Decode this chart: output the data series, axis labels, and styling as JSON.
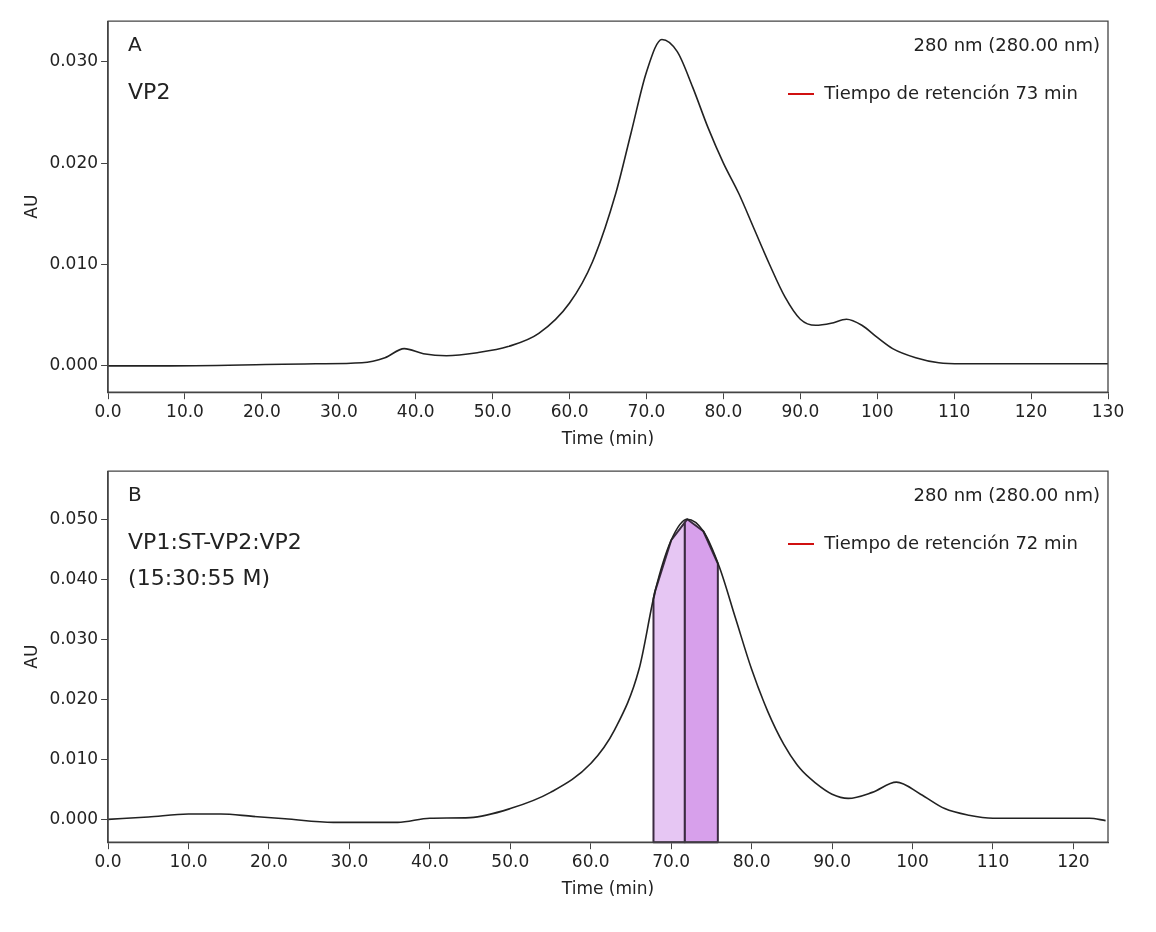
{
  "chart_data": [
    {
      "type": "line",
      "xlabel": "Time (min)",
      "ylabel": "AU",
      "annotations": [
        "A",
        "VP2",
        "280 nm (280.00 nm)",
        "Tiempo de retención 73 min"
      ],
      "series": [
        {
          "color": "#222222",
          "x": [
            0,
            8,
            27,
            33,
            36,
            38.5,
            41,
            44,
            48,
            52,
            56,
            60,
            63,
            66,
            68,
            70,
            72,
            74,
            76,
            78,
            80,
            82,
            84,
            86,
            88,
            90,
            92,
            94,
            96,
            98,
            100,
            102,
            105,
            108,
            111,
            130
          ],
          "values": [
            0,
            0,
            0.0002,
            0.0003,
            0.0008,
            0.0017,
            0.0012,
            0.001,
            0.0013,
            0.0019,
            0.0032,
            0.0062,
            0.0103,
            0.017,
            0.023,
            0.029,
            0.0322,
            0.031,
            0.0275,
            0.0235,
            0.02,
            0.017,
            0.0135,
            0.01,
            0.0068,
            0.0046,
            0.004,
            0.0042,
            0.0046,
            0.004,
            0.0028,
            0.0017,
            0.0008,
            0.0003,
            0.0002,
            0.0002
          ]
        }
      ],
      "xlim": [
        0,
        130
      ],
      "xticks": [
        {
          "value": 0,
          "label": "0.0"
        },
        {
          "value": 10,
          "label": "10.0"
        },
        {
          "value": 20,
          "label": "20.0"
        },
        {
          "value": 30,
          "label": "30.0"
        },
        {
          "value": 40,
          "label": "40.0"
        },
        {
          "value": 50,
          "label": "50.0"
        },
        {
          "value": 60,
          "label": "60.0"
        },
        {
          "value": 70,
          "label": "70.0"
        },
        {
          "value": 80,
          "label": "80.0"
        },
        {
          "value": 90,
          "label": "90.0"
        },
        100,
        110,
        120,
        130
      ],
      "ylim": [
        -0.0026,
        0.034
      ],
      "yticks": [
        {
          "value": 0,
          "label": "0.000"
        },
        {
          "value": 0.01,
          "label": "0.010"
        },
        {
          "value": 0.02,
          "label": "0.020"
        },
        {
          "value": 0.03,
          "label": "0.030"
        }
      ],
      "grid": false,
      "legend": false
    },
    {
      "type": "line",
      "xlabel": "Time (min)",
      "ylabel": "AU",
      "annotations": [
        "B",
        "VP1:ST-VP2:VP2 (15:30:55 M)",
        "280 nm (280.00 nm)",
        "Tiempo de retención 72 min"
      ],
      "series": [
        {
          "color": "#222222",
          "x": [
            0,
            5,
            10,
            14,
            18,
            22,
            28,
            36,
            40,
            45,
            50,
            55,
            60,
            63,
            66,
            68,
            70,
            72,
            74,
            76,
            78,
            80,
            82,
            84,
            86,
            88,
            90,
            92,
            95,
            98,
            101,
            104,
            107,
            110,
            122,
            124
          ],
          "values": [
            0,
            0.0004,
            0.0009,
            0.0009,
            0.0005,
            0.0001,
            -0.0005,
            -0.0005,
            0.0002,
            0.0003,
            0.0018,
            0.0045,
            0.0093,
            0.015,
            0.025,
            0.038,
            0.0465,
            0.05,
            0.048,
            0.042,
            0.0335,
            0.025,
            0.018,
            0.0125,
            0.0085,
            0.006,
            0.0042,
            0.0035,
            0.0045,
            0.0062,
            0.0042,
            0.0018,
            0.0007,
            0.0002,
            0.0002,
            -0.0002
          ]
        }
      ],
      "bands": [
        {
          "axis": "x",
          "from": 67.8,
          "to": 71.7,
          "color": "#e6c6f3"
        },
        {
          "axis": "x",
          "from": 71.7,
          "to": 75.8,
          "color": "#d7a0eb"
        }
      ],
      "xlim": [
        0,
        124.3
      ],
      "xticks": [
        {
          "value": 0,
          "label": "0.0"
        },
        {
          "value": 10,
          "label": "10.0"
        },
        {
          "value": 20,
          "label": "20.0"
        },
        {
          "value": 30,
          "label": "30.0"
        },
        {
          "value": 40,
          "label": "40.0"
        },
        {
          "value": 50,
          "label": "50.0"
        },
        {
          "value": 60,
          "label": "60.0"
        },
        {
          "value": 70,
          "label": "70.0"
        },
        {
          "value": 80,
          "label": "80.0"
        },
        {
          "value": 90,
          "label": "90.0"
        },
        100,
        110,
        120
      ],
      "ylim": [
        -0.0038,
        0.058
      ],
      "yticks": [
        {
          "value": 0,
          "label": "0.000"
        },
        {
          "value": 0.01,
          "label": "0.010"
        },
        {
          "value": 0.02,
          "label": "0.020"
        },
        {
          "value": 0.03,
          "label": "0.030"
        },
        {
          "value": 0.04,
          "label": "0.040"
        },
        {
          "value": 0.05,
          "label": "0.050"
        }
      ],
      "grid": false,
      "legend": false
    }
  ]
}
